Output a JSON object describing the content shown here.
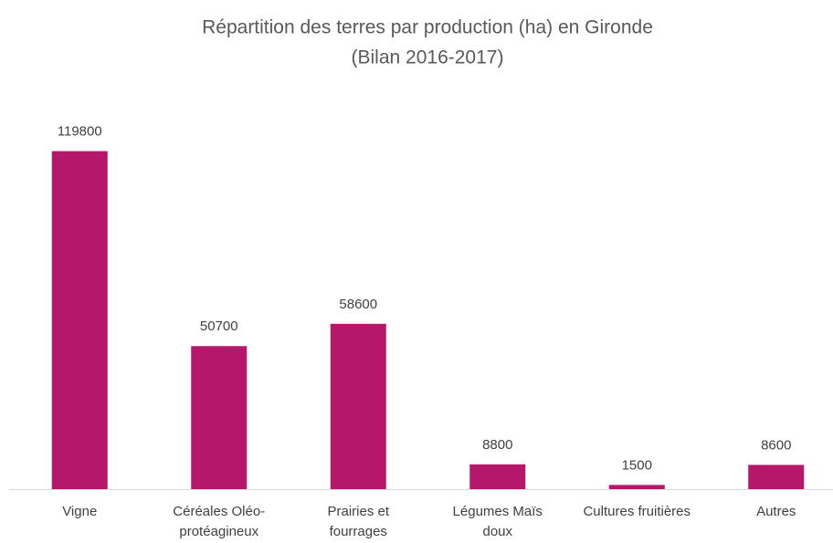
{
  "chart_data": {
    "type": "bar",
    "title": "Répartition des terres par production (ha) en Gironde",
    "subtitle": "(Bilan 2016-2017)",
    "categories": [
      "Vigne",
      "Céréales Oléo-protéagineux",
      "Prairies et fourrages",
      "Légumes Maïs doux",
      "Cultures fruitières",
      "Autres"
    ],
    "values": [
      119800,
      50700,
      58600,
      8800,
      1500,
      8600
    ],
    "color": "#b5176b",
    "ylim": [
      0,
      120000
    ]
  }
}
